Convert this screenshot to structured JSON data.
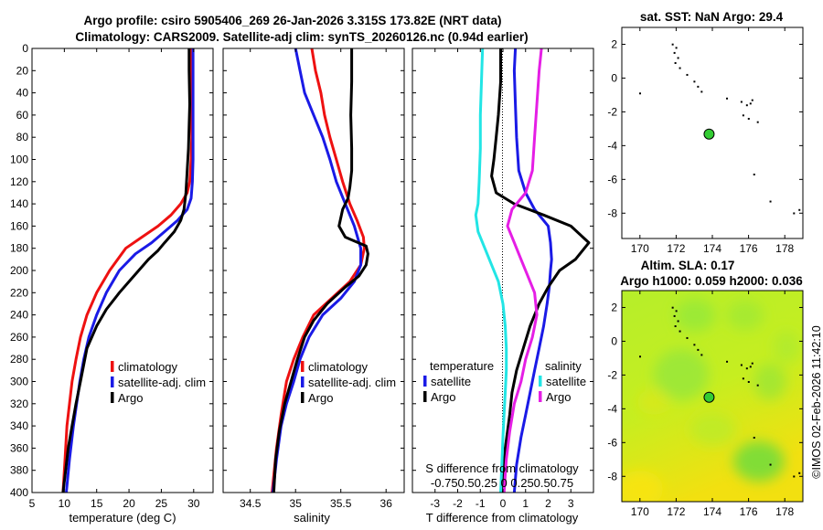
{
  "header": {
    "title_line1": "Argo profile: csiro 5905406_269 26-Jan-2026 3.315S 173.82E (NRT data)",
    "title_line2": "Climatology: CARS2009. Satellite-adj clim: synTS_20260126.nc (0.94d earlier)"
  },
  "colors": {
    "climatology": "#ee1111",
    "satellite": "#1a1ae6",
    "argo": "#000000",
    "t_sat": "#1a1ae6",
    "s_sat": "#22e5e5",
    "s_clim": "#e51ee5"
  },
  "chart_data": [
    {
      "id": "temperature",
      "type": "line",
      "xlabel": "temperature (deg C)",
      "ylim": [
        400,
        0
      ],
      "xlim": [
        5,
        33
      ],
      "xticks": [
        5,
        10,
        15,
        20,
        25,
        30
      ],
      "yticks": [
        0,
        20,
        40,
        60,
        80,
        100,
        120,
        140,
        160,
        180,
        200,
        220,
        240,
        260,
        280,
        300,
        320,
        340,
        360,
        380,
        400
      ],
      "legend": [
        "climatology",
        "satellite-adj. clim",
        "Argo"
      ],
      "series": [
        {
          "name": "climatology",
          "color": "#ee1111",
          "x": [
            29.5,
            29.6,
            29.6,
            29.7,
            29.6,
            29.4,
            29.0,
            28.0,
            26.5,
            24.5,
            22.0,
            19.5,
            17.0,
            15.0,
            13.5,
            12.5,
            11.8,
            11.2,
            10.8,
            10.4,
            10.1,
            9.8
          ],
          "depth": [
            0,
            20,
            50,
            80,
            100,
            120,
            130,
            140,
            150,
            160,
            170,
            180,
            200,
            220,
            240,
            260,
            280,
            300,
            320,
            340,
            370,
            400
          ]
        },
        {
          "name": "satellite-adj. clim",
          "color": "#1a1ae6",
          "x": [
            29.9,
            29.9,
            29.9,
            29.9,
            29.9,
            29.8,
            29.6,
            29.0,
            27.5,
            25.5,
            23.5,
            21.0,
            18.5,
            16.5,
            15.0,
            13.8,
            13.0,
            12.4,
            11.9,
            11.4,
            10.8,
            10.3
          ],
          "depth": [
            0,
            20,
            50,
            80,
            100,
            120,
            135,
            145,
            155,
            165,
            175,
            185,
            200,
            220,
            240,
            260,
            280,
            300,
            320,
            340,
            370,
            400
          ]
        },
        {
          "name": "Argo",
          "color": "#000000",
          "x": [
            29.3,
            29.3,
            29.4,
            29.3,
            29.2,
            29.0,
            28.8,
            28.5,
            28.0,
            27.0,
            25.5,
            24.5,
            23.0,
            21.5,
            20.0,
            18.5,
            16.5,
            15.0,
            13.5,
            12.5,
            11.8,
            11.2,
            10.6,
            10.2,
            9.8
          ],
          "depth": [
            0,
            20,
            50,
            70,
            90,
            110,
            130,
            145,
            155,
            165,
            175,
            182,
            190,
            200,
            210,
            220,
            235,
            250,
            270,
            300,
            320,
            340,
            360,
            380,
            400
          ]
        }
      ]
    },
    {
      "id": "salinity",
      "type": "line",
      "xlabel": "salinity",
      "ylim": [
        400,
        0
      ],
      "xlim": [
        34.2,
        36.2
      ],
      "xticks": [
        34.5,
        35,
        35.5,
        36
      ],
      "xtick_labels": [
        "34.5",
        "35",
        "35.5",
        "36"
      ],
      "legend": [
        "climatology",
        "satellite-adj. clim",
        "Argo"
      ],
      "series": [
        {
          "name": "climatology",
          "color": "#ee1111",
          "x": [
            35.18,
            35.22,
            35.28,
            35.32,
            35.38,
            35.45,
            35.52,
            35.6,
            35.68,
            35.75,
            35.76,
            35.72,
            35.6,
            35.4,
            35.2,
            35.08,
            34.98,
            34.9,
            34.84,
            34.79,
            34.74
          ],
          "depth": [
            0,
            20,
            40,
            60,
            80,
            100,
            120,
            140,
            155,
            170,
            180,
            195,
            210,
            225,
            240,
            260,
            280,
            300,
            330,
            360,
            400
          ]
        },
        {
          "name": "satellite-adj. clim",
          "color": "#1a1ae6",
          "x": [
            35.0,
            35.05,
            35.1,
            35.2,
            35.3,
            35.38,
            35.45,
            35.55,
            35.65,
            35.72,
            35.72,
            35.65,
            35.5,
            35.3,
            35.15,
            35.05,
            34.98,
            34.9,
            34.84,
            34.79,
            34.75
          ],
          "depth": [
            0,
            20,
            40,
            60,
            80,
            100,
            120,
            140,
            160,
            180,
            195,
            210,
            225,
            240,
            260,
            280,
            300,
            320,
            340,
            370,
            400
          ]
        },
        {
          "name": "Argo",
          "color": "#000000",
          "x": [
            35.62,
            35.62,
            35.61,
            35.62,
            35.62,
            35.6,
            35.58,
            35.52,
            35.48,
            35.55,
            35.78,
            35.8,
            35.78,
            35.7,
            35.55,
            35.35,
            35.2,
            35.1,
            35.02,
            34.95,
            34.88,
            34.82,
            34.78,
            34.76
          ],
          "depth": [
            0,
            30,
            60,
            90,
            110,
            125,
            135,
            145,
            160,
            170,
            178,
            185,
            195,
            205,
            215,
            230,
            245,
            260,
            280,
            300,
            320,
            345,
            370,
            400
          ]
        }
      ]
    },
    {
      "id": "difference",
      "type": "line",
      "xlabel": "T difference from climatology",
      "xlabel_top": "S difference from climatology",
      "xtick_labels_top": "-0.750.50.25 0 0.250.50.75",
      "ylim": [
        400,
        0
      ],
      "xlim": [
        -4,
        4
      ],
      "xticks": [
        -3,
        -2,
        -1,
        0,
        1,
        2,
        3
      ],
      "xtick_labels": [
        "-3",
        "-2",
        "-1",
        "0",
        "1",
        "2",
        "3"
      ],
      "legend_temperature_title": "temperature",
      "legend_salinity_title": "salinity",
      "legend": [
        "satellite",
        "Argo",
        "satellite",
        "Argo"
      ],
      "series": [
        {
          "name": "T satellite",
          "color": "#1a1ae6",
          "x": [
            0.55,
            0.5,
            0.55,
            0.6,
            0.7,
            1.0,
            1.4,
            2.0,
            2.1,
            2.15,
            2.1,
            2.05,
            1.95,
            1.8,
            1.6,
            1.4,
            1.2,
            1.0,
            0.8,
            0.6,
            0.5
          ],
          "depth": [
            0,
            20,
            50,
            80,
            110,
            130,
            145,
            160,
            175,
            190,
            200,
            215,
            230,
            250,
            270,
            290,
            310,
            330,
            350,
            375,
            400
          ]
        },
        {
          "name": "T Argo",
          "color": "#000000",
          "x": [
            -0.1,
            -0.1,
            -0.2,
            -0.3,
            -0.4,
            -0.5,
            -0.3,
            0.5,
            1.8,
            3.0,
            3.8,
            3.2,
            2.5,
            2.0,
            1.6,
            1.2,
            0.9,
            0.6,
            0.4,
            0.3,
            0.1,
            0.0
          ],
          "depth": [
            0,
            30,
            60,
            80,
            100,
            115,
            130,
            140,
            150,
            160,
            175,
            190,
            200,
            215,
            230,
            250,
            270,
            290,
            310,
            330,
            360,
            400
          ]
        },
        {
          "name": "S satellite",
          "color": "#22e5e5",
          "x": [
            -0.9,
            -0.95,
            -1.0,
            -1.0,
            -1.05,
            -1.1,
            -1.2,
            -1.1,
            -0.8,
            -0.5,
            -0.2,
            0.0,
            0.1,
            0.15,
            0.15,
            0.1,
            0.05,
            0.0,
            -0.05,
            -0.1
          ],
          "depth": [
            0,
            30,
            60,
            90,
            120,
            140,
            150,
            165,
            180,
            195,
            210,
            230,
            250,
            270,
            290,
            310,
            330,
            350,
            375,
            400
          ]
        },
        {
          "name": "S Argo",
          "color": "#e51ee5",
          "x": [
            1.7,
            1.6,
            1.5,
            1.4,
            1.3,
            1.0,
            0.4,
            0.2,
            0.5,
            0.8,
            1.1,
            1.4,
            1.5,
            1.3,
            1.0,
            0.8,
            0.5,
            0.3,
            0.15,
            0.05
          ],
          "depth": [
            0,
            20,
            50,
            80,
            110,
            130,
            145,
            160,
            175,
            190,
            205,
            220,
            240,
            260,
            280,
            300,
            320,
            345,
            370,
            400
          ]
        }
      ]
    },
    {
      "id": "sst-map",
      "type": "scatter",
      "title": "sat. SST: NaN Argo: 29.4",
      "xlim": [
        169,
        179
      ],
      "ylim": [
        -9.5,
        3
      ],
      "xticks": [
        170,
        172,
        174,
        176,
        178
      ],
      "yticks": [
        2,
        0,
        -2,
        -4,
        -6,
        -8
      ],
      "marker": {
        "lon": 173.82,
        "lat": -3.315,
        "color": "#33cc33"
      },
      "islands": {
        "lon": [
          171.8,
          172.0,
          171.9,
          172.1,
          171.95,
          172.2,
          172.6,
          173.0,
          173.2,
          173.4,
          174.8,
          175.6,
          175.9,
          175.7,
          176.0,
          176.2,
          176.1,
          176.5,
          170.0,
          176.3,
          177.2,
          178.5,
          178.8
        ],
        "lat": [
          2.0,
          1.8,
          1.5,
          1.2,
          0.9,
          0.6,
          0.2,
          -0.2,
          -0.5,
          -0.8,
          -1.2,
          -1.4,
          -1.6,
          -2.2,
          -2.4,
          -1.3,
          -1.5,
          -2.6,
          -0.9,
          -5.7,
          -7.3,
          -8.0,
          -7.8
        ]
      }
    },
    {
      "id": "sla-map",
      "type": "heatmap",
      "title_line1": "Altim. SLA: 0.17",
      "title_line2": "Argo h1000: 0.059 h2000: 0.036",
      "xlim": [
        169,
        179
      ],
      "ylim": [
        -9.5,
        3
      ],
      "xticks": [
        170,
        172,
        174,
        176,
        178
      ],
      "yticks": [
        2,
        0,
        -2,
        -4,
        -6,
        -8
      ],
      "marker": {
        "lon": 173.82,
        "lat": -3.315,
        "color": "#33cc33"
      }
    }
  ],
  "watermark": "©IMOS 02-Feb-2026 11:42:10"
}
